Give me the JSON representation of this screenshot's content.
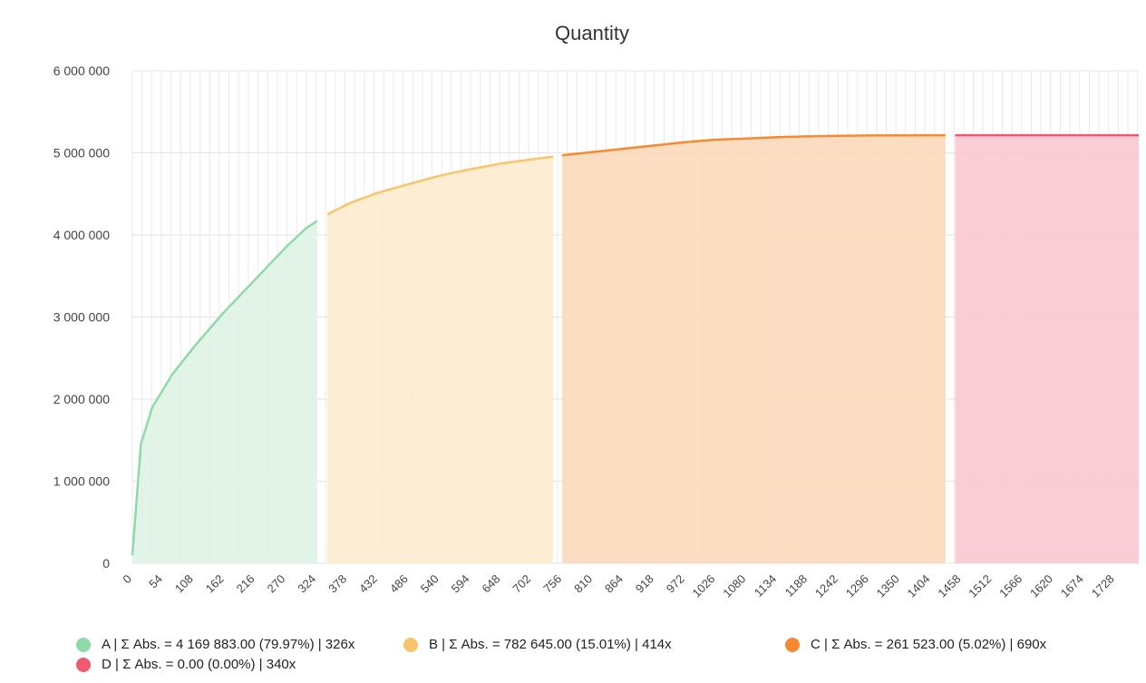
{
  "chart_data": {
    "type": "area",
    "title": "Quantity",
    "xlabel": "",
    "ylabel": "",
    "xlim": [
      0,
      1770
    ],
    "ylim": [
      0,
      6000000
    ],
    "y_ticks": [
      0,
      1000000,
      2000000,
      3000000,
      4000000,
      5000000,
      6000000
    ],
    "y_tick_labels": [
      "0",
      "1 000 000",
      "2 000 000",
      "3 000 000",
      "4 000 000",
      "5 000 000",
      "6 000 000"
    ],
    "x_ticks": [
      0,
      54,
      108,
      162,
      216,
      270,
      324,
      378,
      432,
      486,
      540,
      594,
      648,
      702,
      756,
      810,
      864,
      918,
      972,
      1026,
      1080,
      1134,
      1188,
      1242,
      1296,
      1350,
      1404,
      1458,
      1512,
      1566,
      1620,
      1674,
      1728
    ],
    "x_tick_labels": [
      "0",
      "54",
      "108",
      "162",
      "216",
      "270",
      "324",
      "378",
      "432",
      "486",
      "540",
      "594",
      "648",
      "702",
      "756",
      "810",
      "864",
      "918",
      "972",
      "1026",
      "1080",
      "1134",
      "1188",
      "1242",
      "1296",
      "1350",
      "1404",
      "1458",
      "1512",
      "1566",
      "1620",
      "1674",
      "1728"
    ],
    "grid": true,
    "legend_position": "bottom",
    "series": [
      {
        "name": "A | Σ Abs. = 4 169 883.00 (79.97%) | 326x",
        "color": "#90d9a8",
        "fill": "#dff3e6",
        "x": [
          0,
          15,
          35,
          70,
          110,
          160,
          215,
          270,
          305,
          325
        ],
        "y": [
          100000,
          1450000,
          1900000,
          2300000,
          2650000,
          3050000,
          3450000,
          3850000,
          4080000,
          4169883
        ]
      },
      {
        "name": "B | Σ Abs. = 782 645.00 (15.01%) | 414x",
        "color": "#f9c46b",
        "fill": "#fdebcd",
        "x": [
          343,
          380,
          430,
          486,
          540,
          594,
          648,
          702,
          740
        ],
        "y": [
          4250000,
          4380000,
          4510000,
          4620000,
          4720000,
          4800000,
          4870000,
          4920000,
          4952528
        ]
      },
      {
        "name": "C | Σ Abs. = 261 523.00 (5.02%) | 690x",
        "color": "#f7892e",
        "fill": "#fcd9bb",
        "x": [
          756,
          810,
          864,
          918,
          972,
          1026,
          1080,
          1134,
          1188,
          1242,
          1296,
          1350,
          1404,
          1430
        ],
        "y": [
          4970000,
          5010000,
          5050000,
          5090000,
          5130000,
          5160000,
          5175000,
          5190000,
          5200000,
          5208000,
          5211000,
          5213000,
          5214000,
          5214051
        ]
      },
      {
        "name": "D | Σ Abs. = 0.00 (0.00%) | 340x",
        "color": "#ef5a6e",
        "fill": "#f9c7d0",
        "x": [
          1447,
          1770
        ],
        "y": [
          5214051,
          5214051
        ]
      }
    ]
  }
}
